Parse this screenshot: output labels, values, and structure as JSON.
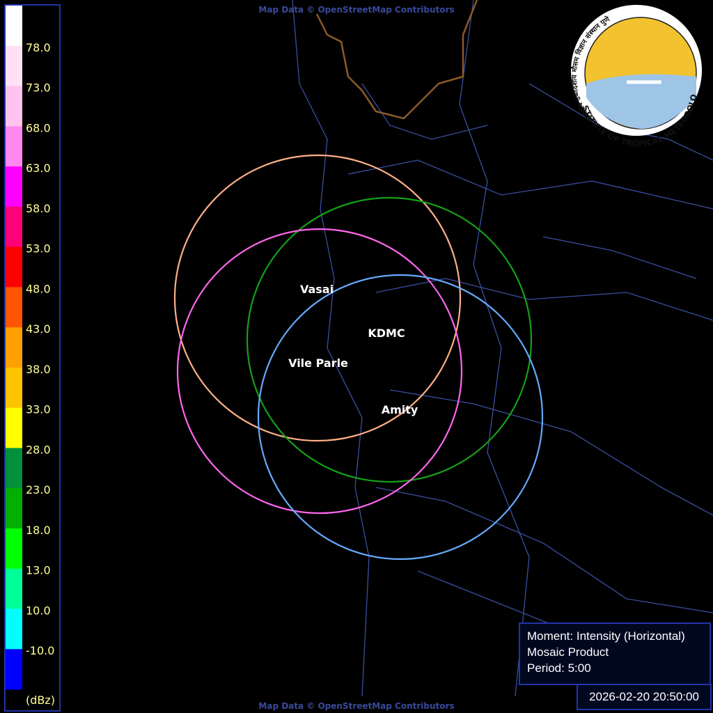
{
  "legend": {
    "labels": [
      "78.0",
      "73.0",
      "68.0",
      "63.0",
      "58.0",
      "53.0",
      "48.0",
      "43.0",
      "38.0",
      "33.0",
      "28.0",
      "23.0",
      "18.0",
      "13.0",
      "10.0",
      "-10.0"
    ],
    "unit": "(dBz)",
    "colors": [
      "#ffffff",
      "#ffe0f4",
      "#ffc4ee",
      "#ff88f0",
      "#ff00ff",
      "#ff0077",
      "#ff0000",
      "#ff5500",
      "#ffa000",
      "#ffc400",
      "#ffff00",
      "#00913a",
      "#00b000",
      "#00ff00",
      "#00ff99",
      "#00ffff",
      "#0000ff"
    ]
  },
  "attribution": {
    "top": "Map Data © OpenStreetMap Contributors",
    "bottom": "Map Data © OpenStreetMap Contributors"
  },
  "stations": [
    "Vasai",
    "KDMC",
    "Vile Parle",
    "Amity"
  ],
  "logo": {
    "english": "INDIAN INSTITUTE OF TROPICAL METEOROLOGY PUNE",
    "hindi": "भारतीय उष्णदेशीय मौसम विज्ञान संस्थान पुणे"
  },
  "info": {
    "moment": "Moment: Intensity (Horizontal)",
    "product": "Mosaic Product",
    "period": "Period: 5:00"
  },
  "timestamp": "2026-02-20 20:50:00"
}
